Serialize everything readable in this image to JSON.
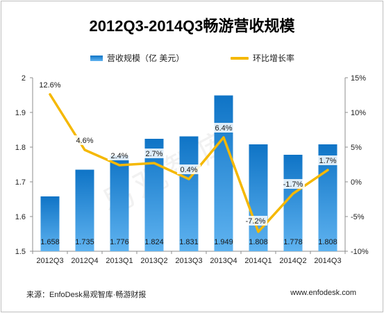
{
  "title": "2012Q3-2014Q3畅游营收规模",
  "legend": {
    "bar_label": "营收规模（亿 美元）",
    "line_label": "环比增长率"
  },
  "watermark": "易观智库",
  "footer": {
    "source": "来源：EnfoDesk易观智库·畅游财报",
    "website": "www.enfodesk.com"
  },
  "colors": {
    "bar_top": "#0f74c6",
    "bar_bottom": "#5fb3f0",
    "line": "#f5b800"
  },
  "chart_data": {
    "type": "bar",
    "title": "2012Q3-2014Q3畅游营收规模",
    "categories": [
      "2012Q3",
      "2012Q4",
      "2013Q1",
      "2013Q2",
      "2013Q3",
      "2013Q4",
      "2014Q1",
      "2014Q2",
      "2014Q3"
    ],
    "series": [
      {
        "name": "营收规模（亿 美元）",
        "type": "bar",
        "axis": "left",
        "values": [
          1.658,
          1.735,
          1.776,
          1.824,
          1.831,
          1.949,
          1.808,
          1.778,
          1.808
        ],
        "labels": [
          "1.658",
          "1.735",
          "1.776",
          "1.824",
          "1.831",
          "1.949",
          "1.808",
          "1.778",
          "1.808"
        ]
      },
      {
        "name": "环比增长率",
        "type": "line",
        "axis": "right",
        "values": [
          12.6,
          4.6,
          2.4,
          2.7,
          0.4,
          6.4,
          -7.2,
          -1.7,
          1.7
        ],
        "labels": [
          "12.6%",
          "4.6%",
          "2.4%",
          "2.7%",
          "0.4%",
          "6.4%",
          "-7.2%",
          "-1.7%",
          "1.7%"
        ]
      }
    ],
    "y_left": {
      "ylim": [
        1.5,
        2.0
      ],
      "ticks": [
        "1.5",
        "1.6",
        "1.7",
        "1.8",
        "1.9",
        "2"
      ]
    },
    "y_right": {
      "ylim": [
        -10,
        15
      ],
      "ticks": [
        "-10%",
        "-5%",
        "0%",
        "5%",
        "10%",
        "15%"
      ]
    },
    "grid": false,
    "legend_position": "top"
  }
}
